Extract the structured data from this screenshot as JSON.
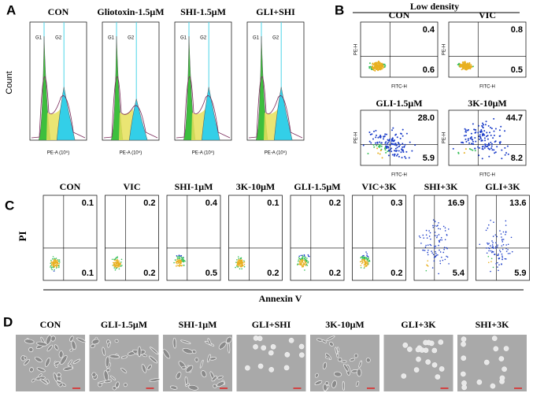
{
  "panel_a": {
    "label": "A",
    "y_axis": "Count",
    "x_axis": "PE-A (10⁵)",
    "g1": "G1",
    "g2": "G2",
    "plots": [
      {
        "title": "CON"
      },
      {
        "title": "Gliotoxin-1.5μM"
      },
      {
        "title": "SHI-1.5μM"
      },
      {
        "title": "GLI+SHI"
      }
    ]
  },
  "panel_b": {
    "label": "B",
    "title": "Low density",
    "y_axis": "PE-H",
    "x_axis": "FITC-H",
    "plots": [
      {
        "title": "CON",
        "upper_right": "0.4",
        "lower_right": "0.6"
      },
      {
        "title": "VIC",
        "upper_right": "0.8",
        "lower_right": "0.5"
      },
      {
        "title": "GLI-1.5μM",
        "upper_right": "28.0",
        "lower_right": "5.9"
      },
      {
        "title": "3K-10μM",
        "upper_right": "44.7",
        "lower_right": "8.2"
      }
    ]
  },
  "panel_c": {
    "label": "C",
    "y_axis": "PI",
    "x_axis": "Annexin V",
    "plots": [
      {
        "title": "CON",
        "upper_right": "0.1",
        "lower_right": "0.1"
      },
      {
        "title": "VIC",
        "upper_right": "0.2",
        "lower_right": "0.2"
      },
      {
        "title": "SHI-1μM",
        "upper_right": "0.4",
        "lower_right": "0.5"
      },
      {
        "title": "3K-10μM",
        "upper_right": "0.1",
        "lower_right": "0.2"
      },
      {
        "title": "GLI-1.5μM",
        "upper_right": "0.2",
        "lower_right": "0.2"
      },
      {
        "title": "VIC+3K",
        "upper_right": "0.3",
        "lower_right": "0.2"
      },
      {
        "title": "SHI+3K",
        "upper_right": "16.9",
        "lower_right": "5.4"
      },
      {
        "title": "GLI+3K",
        "upper_right": "13.6",
        "lower_right": "5.9"
      }
    ]
  },
  "panel_d": {
    "label": "D",
    "images": [
      {
        "title": "CON"
      },
      {
        "title": "GLI-1.5μM"
      },
      {
        "title": "SHI-1μM"
      },
      {
        "title": "GLI+SHI"
      },
      {
        "title": "3K-10μM"
      },
      {
        "title": "GLI+3K"
      },
      {
        "title": "SHI+3K"
      }
    ]
  }
}
